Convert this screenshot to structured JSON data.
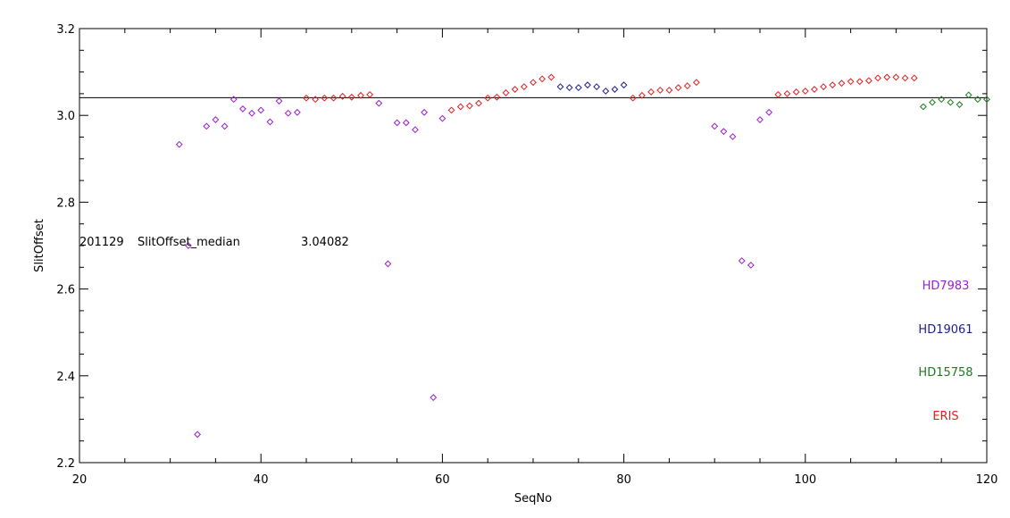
{
  "chart_data": {
    "type": "scatter",
    "xlabel": "SeqNo",
    "ylabel": "SlitOffset",
    "xlim": [
      20,
      120
    ],
    "ylim": [
      2.2,
      3.2
    ],
    "x_ticks": [
      20,
      40,
      60,
      80,
      100,
      120
    ],
    "y_ticks": [
      2.2,
      2.4,
      2.6,
      2.8,
      3.0,
      3.2
    ],
    "y_tick_labels": [
      "2.2",
      "2.4",
      "2.6",
      "2.8",
      "3.0",
      "3.2"
    ],
    "median_line": 3.04082,
    "annotation": {
      "date": "201129",
      "label": "SlitOffset_median",
      "value": "3.04082"
    },
    "legend": [
      {
        "name": "HD7983",
        "color": "#9b1fd0"
      },
      {
        "name": "HD19061",
        "color": "#1c1c8c"
      },
      {
        "name": "HD15758",
        "color": "#1e7a1e"
      },
      {
        "name": "ERIS",
        "color": "#e02020"
      }
    ],
    "series": [
      {
        "name": "HD7983",
        "color": "#9b1fd0",
        "points": [
          [
            31,
            2.933
          ],
          [
            32,
            2.7
          ],
          [
            33,
            2.265
          ],
          [
            34,
            2.975
          ],
          [
            35,
            2.99
          ],
          [
            36,
            2.975
          ],
          [
            37,
            3.037
          ],
          [
            38,
            3.015
          ],
          [
            39,
            3.005
          ],
          [
            40,
            3.012
          ],
          [
            41,
            2.985
          ],
          [
            42,
            3.033
          ],
          [
            43,
            3.005
          ],
          [
            44,
            3.007
          ],
          [
            53,
            3.028
          ],
          [
            54,
            2.658
          ],
          [
            55,
            2.983
          ],
          [
            56,
            2.983
          ],
          [
            57,
            2.967
          ],
          [
            58,
            3.007
          ],
          [
            59,
            2.35
          ],
          [
            60,
            2.993
          ],
          [
            90,
            2.975
          ],
          [
            91,
            2.963
          ],
          [
            92,
            2.951
          ],
          [
            93,
            2.665
          ],
          [
            94,
            2.655
          ],
          [
            95,
            2.99
          ],
          [
            96,
            3.007
          ]
        ]
      },
      {
        "name": "HD19061",
        "color": "#1c1c8c",
        "points": [
          [
            73,
            3.066
          ],
          [
            74,
            3.064
          ],
          [
            75,
            3.064
          ],
          [
            76,
            3.07
          ],
          [
            77,
            3.066
          ],
          [
            78,
            3.056
          ],
          [
            79,
            3.06
          ],
          [
            80,
            3.07
          ]
        ]
      },
      {
        "name": "HD15758",
        "color": "#1e7a1e",
        "points": [
          [
            113,
            3.02
          ],
          [
            114,
            3.03
          ],
          [
            115,
            3.037
          ],
          [
            116,
            3.03
          ],
          [
            117,
            3.025
          ],
          [
            118,
            3.047
          ],
          [
            119,
            3.037
          ],
          [
            120,
            3.037
          ]
        ]
      },
      {
        "name": "ERIS",
        "color": "#e02020",
        "points": [
          [
            45,
            3.04
          ],
          [
            46,
            3.037
          ],
          [
            47,
            3.04
          ],
          [
            48,
            3.04
          ],
          [
            49,
            3.044
          ],
          [
            50,
            3.042
          ],
          [
            51,
            3.046
          ],
          [
            52,
            3.048
          ],
          [
            61,
            3.012
          ],
          [
            62,
            3.02
          ],
          [
            63,
            3.022
          ],
          [
            64,
            3.028
          ],
          [
            65,
            3.04
          ],
          [
            66,
            3.042
          ],
          [
            67,
            3.052
          ],
          [
            68,
            3.06
          ],
          [
            69,
            3.066
          ],
          [
            70,
            3.076
          ],
          [
            71,
            3.084
          ],
          [
            72,
            3.088
          ],
          [
            81,
            3.04
          ],
          [
            82,
            3.046
          ],
          [
            83,
            3.054
          ],
          [
            84,
            3.058
          ],
          [
            85,
            3.058
          ],
          [
            86,
            3.064
          ],
          [
            87,
            3.068
          ],
          [
            88,
            3.076
          ],
          [
            97,
            3.048
          ],
          [
            98,
            3.05
          ],
          [
            99,
            3.054
          ],
          [
            100,
            3.056
          ],
          [
            101,
            3.06
          ],
          [
            102,
            3.066
          ],
          [
            103,
            3.07
          ],
          [
            104,
            3.074
          ],
          [
            105,
            3.078
          ],
          [
            106,
            3.078
          ],
          [
            107,
            3.08
          ],
          [
            108,
            3.086
          ],
          [
            109,
            3.088
          ],
          [
            110,
            3.088
          ],
          [
            111,
            3.086
          ],
          [
            112,
            3.086
          ]
        ]
      }
    ]
  }
}
